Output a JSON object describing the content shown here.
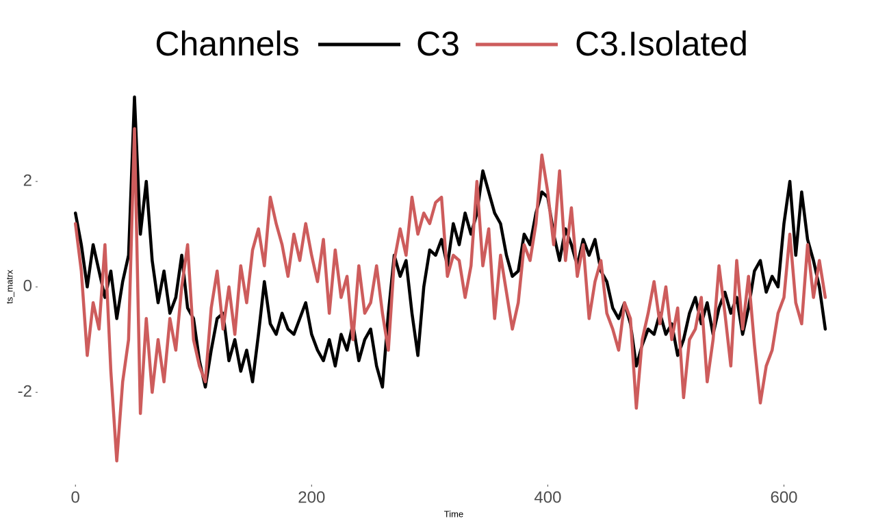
{
  "chart_data": {
    "type": "line",
    "legend_title": "Channels",
    "legend_position": "top",
    "grid": false,
    "x_label": "Time",
    "y_label": "ts_matrx",
    "xlim": [
      -32,
      671
    ],
    "ylim": [
      -3.75,
      4.0
    ],
    "xticks": [
      0,
      200,
      400,
      600
    ],
    "yticks": [
      -2,
      0,
      2
    ],
    "x": [
      0,
      5,
      10,
      15,
      20,
      25,
      30,
      35,
      40,
      45,
      50,
      55,
      60,
      65,
      70,
      75,
      80,
      85,
      90,
      95,
      100,
      105,
      110,
      115,
      120,
      125,
      130,
      135,
      140,
      145,
      150,
      155,
      160,
      165,
      170,
      175,
      180,
      185,
      190,
      195,
      200,
      205,
      210,
      215,
      220,
      225,
      230,
      235,
      240,
      245,
      250,
      255,
      260,
      265,
      270,
      275,
      280,
      285,
      290,
      295,
      300,
      305,
      310,
      315,
      320,
      325,
      330,
      335,
      340,
      345,
      350,
      355,
      360,
      365,
      370,
      375,
      380,
      385,
      390,
      395,
      400,
      405,
      410,
      415,
      420,
      425,
      430,
      435,
      440,
      445,
      450,
      455,
      460,
      465,
      470,
      475,
      480,
      485,
      490,
      495,
      500,
      505,
      510,
      515,
      520,
      525,
      530,
      535,
      540,
      545,
      550,
      555,
      560,
      565,
      570,
      575,
      580,
      585,
      590,
      595,
      600,
      605,
      610,
      615,
      620,
      625,
      630,
      635
    ],
    "series": [
      {
        "name": "C3",
        "color": "#000000",
        "values": [
          1.4,
          0.8,
          0.0,
          0.8,
          0.3,
          -0.2,
          0.3,
          -0.6,
          0.1,
          0.6,
          3.6,
          1.0,
          2.0,
          0.5,
          -0.3,
          0.3,
          -0.5,
          -0.2,
          0.6,
          -0.4,
          -0.6,
          -1.4,
          -1.9,
          -1.2,
          -0.6,
          -0.5,
          -1.4,
          -1.0,
          -1.6,
          -1.2,
          -1.8,
          -0.9,
          0.1,
          -0.7,
          -0.9,
          -0.5,
          -0.8,
          -0.9,
          -0.6,
          -0.3,
          -0.9,
          -1.2,
          -1.4,
          -1.0,
          -1.5,
          -0.9,
          -1.2,
          -0.7,
          -1.4,
          -1.0,
          -0.8,
          -1.5,
          -1.9,
          -0.5,
          0.6,
          0.2,
          0.5,
          -0.5,
          -1.3,
          0.0,
          0.7,
          0.6,
          0.9,
          0.4,
          1.2,
          0.8,
          1.4,
          1.0,
          1.4,
          2.2,
          1.8,
          1.4,
          1.2,
          0.6,
          0.2,
          0.3,
          1.0,
          0.8,
          1.4,
          1.8,
          1.7,
          1.0,
          0.5,
          1.1,
          0.8,
          0.4,
          0.9,
          0.6,
          0.9,
          0.3,
          0.1,
          -0.4,
          -0.6,
          -0.3,
          -0.7,
          -1.5,
          -1.1,
          -0.8,
          -0.9,
          -0.5,
          -0.9,
          -0.7,
          -1.3,
          -1.0,
          -0.5,
          -0.2,
          -0.7,
          -0.3,
          -0.9,
          -0.4,
          -0.1,
          -0.5,
          -0.2,
          -0.9,
          -0.4,
          0.3,
          0.5,
          -0.1,
          0.2,
          0.0,
          1.2,
          2.0,
          0.6,
          1.8,
          0.9,
          0.5,
          0.0,
          -0.8
        ]
      },
      {
        "name": "C3.Isolated",
        "color": "#cd5c5c",
        "values": [
          1.2,
          0.3,
          -1.3,
          -0.3,
          -0.8,
          0.8,
          -1.6,
          -3.3,
          -1.8,
          -1.0,
          3.0,
          -2.4,
          -0.6,
          -2.0,
          -1.0,
          -1.8,
          -0.6,
          -1.2,
          0.0,
          0.8,
          -1.0,
          -1.5,
          -1.8,
          -0.4,
          0.3,
          -0.8,
          0.0,
          -0.9,
          0.4,
          -0.3,
          0.7,
          1.1,
          0.4,
          1.7,
          1.2,
          0.8,
          0.2,
          1.0,
          0.5,
          1.2,
          0.6,
          0.1,
          0.9,
          -0.5,
          0.7,
          -0.2,
          0.2,
          -1.0,
          0.4,
          -0.5,
          -0.3,
          0.4,
          -0.5,
          -1.2,
          0.5,
          1.1,
          0.6,
          1.7,
          1.0,
          1.4,
          1.2,
          1.6,
          1.7,
          0.2,
          0.6,
          0.5,
          -0.2,
          0.4,
          2.0,
          0.4,
          1.1,
          -0.6,
          0.6,
          -0.1,
          -0.8,
          -0.3,
          0.8,
          0.5,
          1.2,
          2.5,
          1.8,
          0.8,
          2.2,
          0.5,
          1.5,
          0.2,
          0.8,
          -0.6,
          0.1,
          0.5,
          -0.5,
          -0.8,
          -1.2,
          -0.3,
          -0.6,
          -2.3,
          -1.0,
          -0.5,
          0.1,
          -0.7,
          0.0,
          -1.0,
          -0.4,
          -2.1,
          -1.0,
          -0.8,
          -0.2,
          -1.8,
          -1.0,
          0.4,
          -0.5,
          -1.5,
          0.5,
          -0.8,
          0.2,
          -1.1,
          -2.2,
          -1.5,
          -1.2,
          -0.5,
          -0.2,
          1.0,
          -0.3,
          -0.7,
          0.8,
          -0.2,
          0.5,
          -0.2
        ]
      }
    ]
  }
}
